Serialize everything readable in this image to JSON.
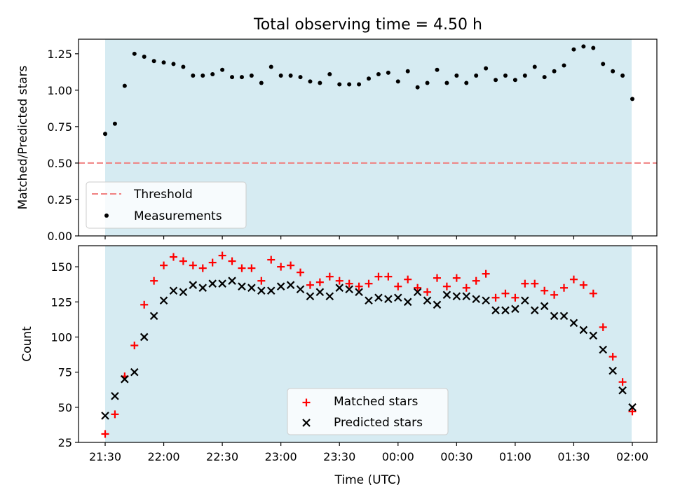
{
  "figure": {
    "title": "Total observing time = 4.50 h"
  },
  "chart_data": [
    {
      "type": "scatter",
      "title": "Total observing time = 4.50 h",
      "xlabel": "",
      "ylabel": "Matched/Predicted stars",
      "ylim": [
        0.0,
        1.35
      ],
      "yticks": [
        "0.00",
        "0.25",
        "0.50",
        "0.75",
        "1.00",
        "1.25"
      ],
      "shaded_span": {
        "color": "#ADD8E6"
      },
      "threshold": {
        "name": "Threshold",
        "value": 0.5,
        "color": "#F08080",
        "style": "dashed"
      },
      "series": [
        {
          "name": "Measurements",
          "marker": "dot",
          "color": "#000000",
          "x": [
            "21:30",
            "21:35",
            "21:40",
            "21:45",
            "21:50",
            "21:55",
            "22:00",
            "22:05",
            "22:10",
            "22:15",
            "22:20",
            "22:25",
            "22:30",
            "22:35",
            "22:40",
            "22:45",
            "22:50",
            "22:55",
            "23:00",
            "23:05",
            "23:10",
            "23:15",
            "23:20",
            "23:25",
            "23:30",
            "23:35",
            "23:40",
            "23:45",
            "23:50",
            "23:55",
            "00:00",
            "00:05",
            "00:10",
            "00:15",
            "00:20",
            "00:25",
            "00:30",
            "00:35",
            "00:40",
            "00:45",
            "00:50",
            "00:55",
            "01:00",
            "01:05",
            "01:10",
            "01:15",
            "01:20",
            "01:25",
            "01:30",
            "01:35",
            "01:40",
            "01:45",
            "01:50",
            "01:55",
            "02:00"
          ],
          "y": [
            0.7,
            0.77,
            1.03,
            1.25,
            1.23,
            1.2,
            1.19,
            1.18,
            1.16,
            1.1,
            1.1,
            1.11,
            1.14,
            1.09,
            1.09,
            1.1,
            1.05,
            1.16,
            1.1,
            1.1,
            1.09,
            1.06,
            1.05,
            1.11,
            1.04,
            1.04,
            1.04,
            1.08,
            1.11,
            1.12,
            1.06,
            1.13,
            1.02,
            1.05,
            1.14,
            1.05,
            1.1,
            1.05,
            1.1,
            1.15,
            1.07,
            1.1,
            1.07,
            1.1,
            1.16,
            1.09,
            1.13,
            1.17,
            1.28,
            1.3,
            1.29,
            1.18,
            1.13,
            1.1,
            0.94
          ]
        }
      ],
      "legend": {
        "position": "lower-left",
        "entries": [
          "Threshold",
          "Measurements"
        ]
      }
    },
    {
      "type": "scatter",
      "title": "",
      "xlabel": "Time (UTC)",
      "ylabel": "Count",
      "ylim": [
        25,
        165
      ],
      "yticks": [
        "25",
        "50",
        "75",
        "100",
        "125",
        "150"
      ],
      "xticks": [
        "21:30",
        "22:00",
        "22:30",
        "23:00",
        "23:30",
        "00:00",
        "00:30",
        "01:00",
        "01:30",
        "02:00"
      ],
      "shaded_span": {
        "color": "#ADD8E6"
      },
      "series": [
        {
          "name": "Matched stars",
          "marker": "plus",
          "color": "#FF0000",
          "x": [
            "21:30",
            "21:35",
            "21:40",
            "21:45",
            "21:50",
            "21:55",
            "22:00",
            "22:05",
            "22:10",
            "22:15",
            "22:20",
            "22:25",
            "22:30",
            "22:35",
            "22:40",
            "22:45",
            "22:50",
            "22:55",
            "23:00",
            "23:05",
            "23:10",
            "23:15",
            "23:20",
            "23:25",
            "23:30",
            "23:35",
            "23:40",
            "23:45",
            "23:50",
            "23:55",
            "00:00",
            "00:05",
            "00:10",
            "00:15",
            "00:20",
            "00:25",
            "00:30",
            "00:35",
            "00:40",
            "00:45",
            "00:50",
            "00:55",
            "01:00",
            "01:05",
            "01:10",
            "01:15",
            "01:20",
            "01:25",
            "01:30",
            "01:35",
            "01:40",
            "01:45",
            "01:50",
            "01:55",
            "02:00"
          ],
          "y": [
            31,
            45,
            72,
            94,
            123,
            140,
            151,
            157,
            154,
            151,
            149,
            153,
            158,
            154,
            149,
            149,
            140,
            155,
            150,
            151,
            146,
            137,
            139,
            143,
            140,
            138,
            136,
            138,
            143,
            143,
            136,
            141,
            135,
            132,
            142,
            136,
            142,
            135,
            140,
            145,
            128,
            131,
            128,
            138,
            138,
            133,
            130,
            135,
            141,
            137,
            131,
            107,
            86,
            68,
            47
          ]
        },
        {
          "name": "Predicted stars",
          "marker": "x",
          "color": "#000000",
          "x": [
            "21:30",
            "21:35",
            "21:40",
            "21:45",
            "21:50",
            "21:55",
            "22:00",
            "22:05",
            "22:10",
            "22:15",
            "22:20",
            "22:25",
            "22:30",
            "22:35",
            "22:40",
            "22:45",
            "22:50",
            "22:55",
            "23:00",
            "23:05",
            "23:10",
            "23:15",
            "23:20",
            "23:25",
            "23:30",
            "23:35",
            "23:40",
            "23:45",
            "23:50",
            "23:55",
            "00:00",
            "00:05",
            "00:10",
            "00:15",
            "00:20",
            "00:25",
            "00:30",
            "00:35",
            "00:40",
            "00:45",
            "00:50",
            "00:55",
            "01:00",
            "01:05",
            "01:10",
            "01:15",
            "01:20",
            "01:25",
            "01:30",
            "01:35",
            "01:40",
            "01:45",
            "01:50",
            "01:55",
            "02:00"
          ],
          "y": [
            44,
            58,
            70,
            75,
            100,
            115,
            126,
            133,
            132,
            137,
            135,
            138,
            138,
            140,
            136,
            135,
            133,
            133,
            136,
            137,
            134,
            129,
            132,
            129,
            135,
            134,
            132,
            126,
            128,
            127,
            128,
            125,
            132,
            126,
            123,
            130,
            129,
            129,
            127,
            126,
            119,
            119,
            120,
            126,
            119,
            122,
            115,
            115,
            110,
            105,
            101,
            91,
            76,
            62,
            50
          ]
        }
      ],
      "legend": {
        "position": "lower-center",
        "entries": [
          "Matched stars",
          "Predicted stars"
        ]
      }
    }
  ]
}
